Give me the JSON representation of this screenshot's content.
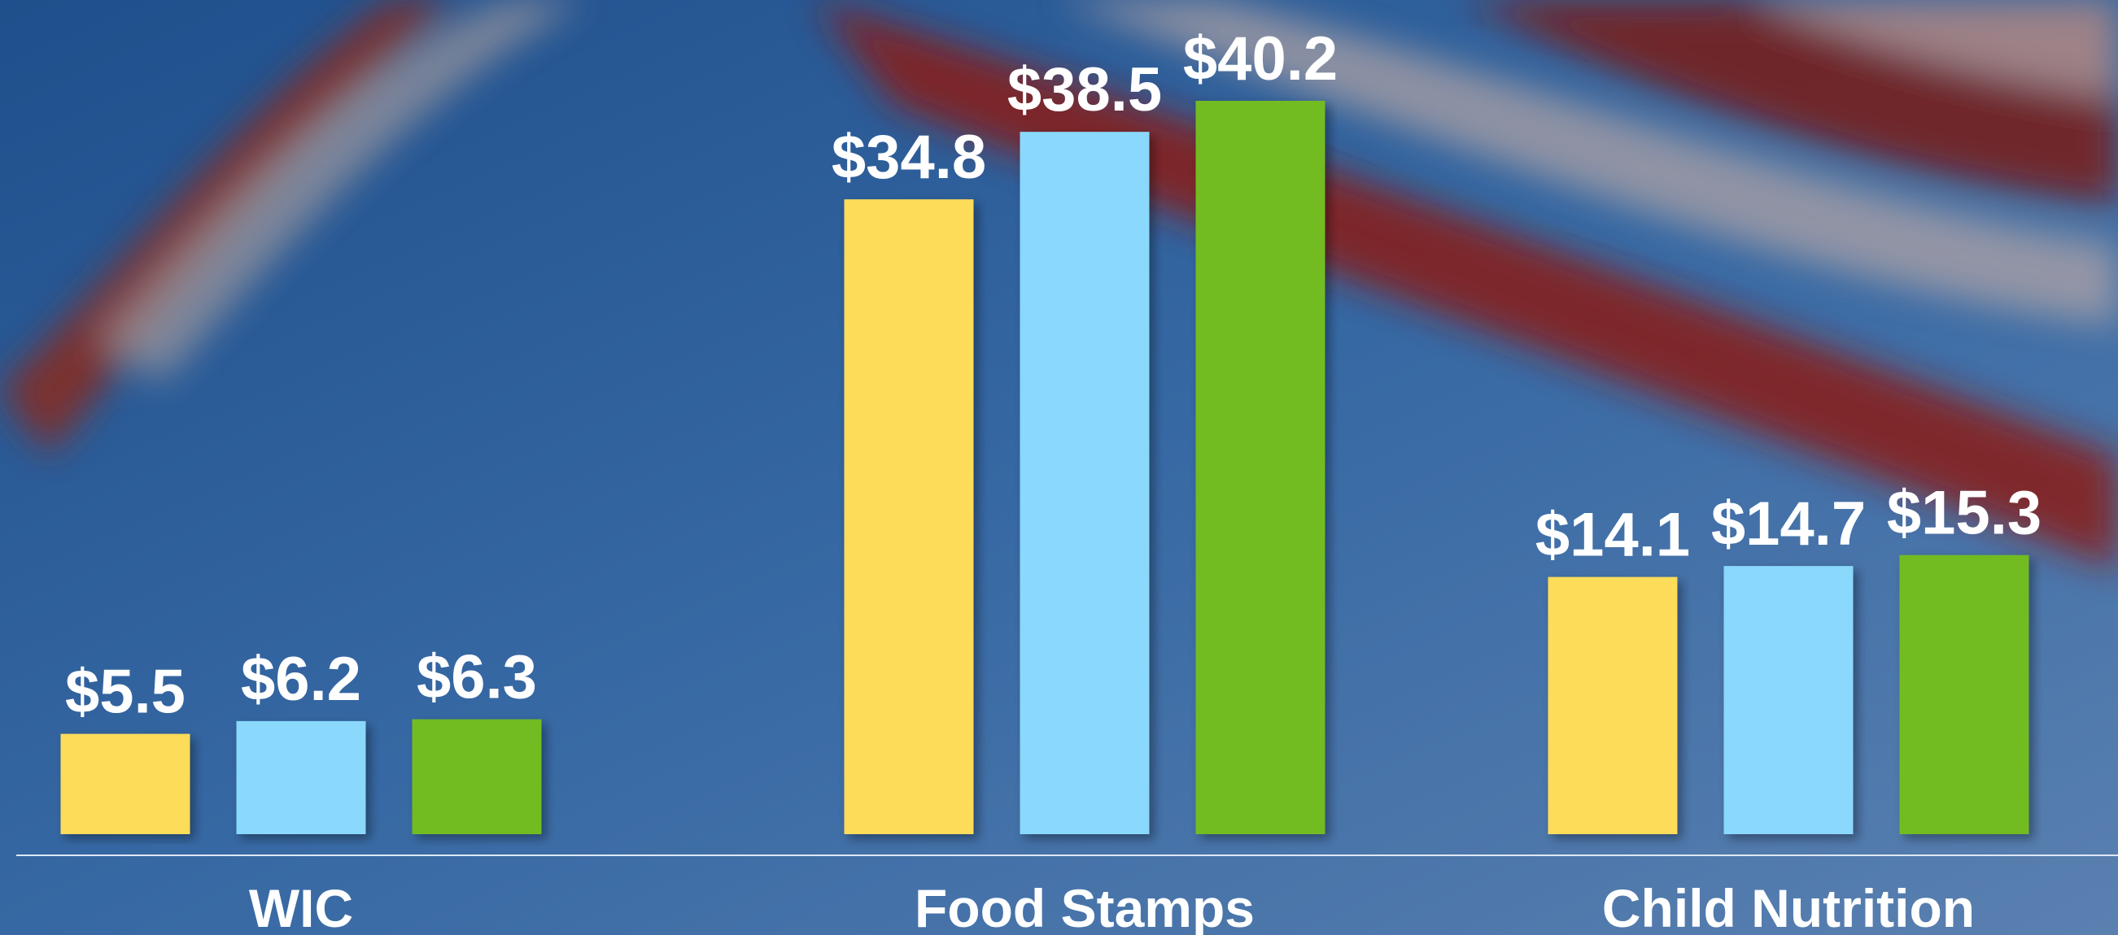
{
  "chart_data": {
    "type": "bar",
    "categories": [
      "WIC",
      "Food Stamps",
      "Child Nutrition"
    ],
    "series": [
      {
        "color": "#fddc5a",
        "values": [
          5.5,
          34.8,
          14.1
        ],
        "value_labels": [
          "$5.5",
          "$34.8",
          "$14.1"
        ]
      },
      {
        "color": "#8ad8fb",
        "values": [
          6.2,
          38.5,
          14.7
        ],
        "value_labels": [
          "$6.2",
          "$38.5",
          "$14.7"
        ]
      },
      {
        "color": "#72bc22",
        "values": [
          6.3,
          40.2,
          15.3
        ],
        "value_labels": [
          "$6.3",
          "$40.2",
          "$15.3"
        ]
      }
    ]
  }
}
